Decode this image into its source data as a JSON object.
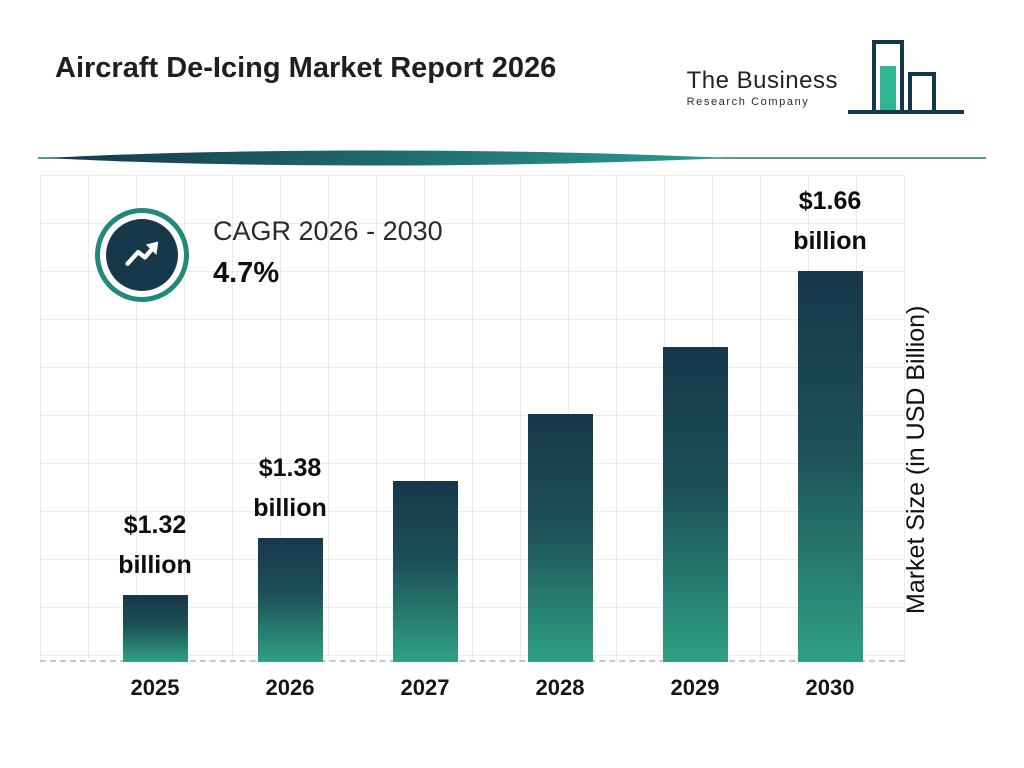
{
  "header": {
    "title": "Aircraft De-Icing Market Report 2026",
    "logo": {
      "line1": "The Business",
      "line2": "Research Company"
    }
  },
  "cagr": {
    "label": "CAGR 2026 - 2030",
    "value": "4.7%"
  },
  "chart_data": {
    "type": "bar",
    "title": "Aircraft De-Icing Market Report 2026",
    "categories": [
      "2025",
      "2026",
      "2027",
      "2028",
      "2029",
      "2030"
    ],
    "values": [
      1.32,
      1.38,
      1.44,
      1.51,
      1.58,
      1.66
    ],
    "bar_labels": [
      "$1.32 billion",
      "$1.38 billion",
      null,
      null,
      null,
      "$1.66 billion"
    ],
    "xlabel": "",
    "ylabel": "Market Size (in USD Billion)",
    "ylim": [
      1.25,
      1.76
    ],
    "grid": true,
    "legend": "none",
    "colors": {
      "bar_gradient_top": "#16374a",
      "bar_gradient_bottom": "#2fa083",
      "accent_teal": "#2a9d8f",
      "dark_navy": "#17384b",
      "grid_line": "#ebebeb"
    }
  },
  "icons": {
    "trend": "trend-up-arrow",
    "logo": "bar-chart-logo"
  }
}
